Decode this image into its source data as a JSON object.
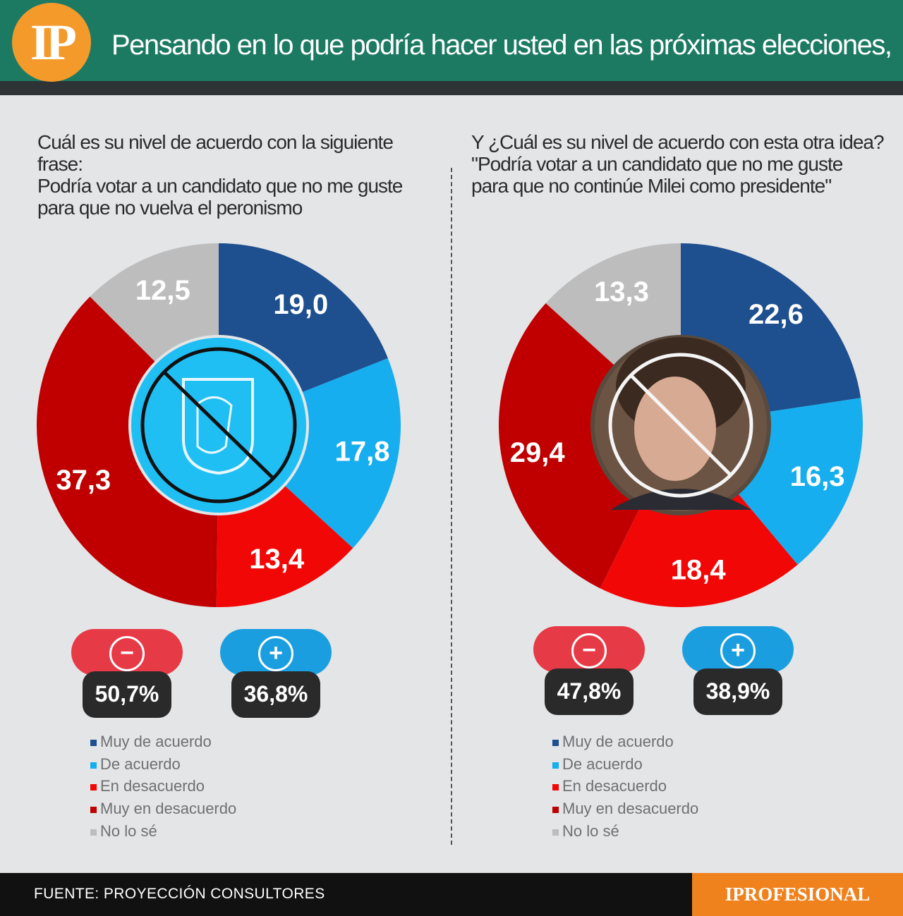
{
  "header": {
    "logo": "IP",
    "title": "Pensando en lo que podría hacer usted en las próximas elecciones,"
  },
  "colors": {
    "muy_de_acuerdo": "#1e4f8e",
    "de_acuerdo": "#16aeee",
    "en_desacuerdo": "#f20707",
    "muy_en_desacuerdo": "#c00000",
    "no_lo_se": "#bdbdbd",
    "minus_pill": "#e63a46",
    "plus_pill": "#1b9ee0"
  },
  "legend": [
    "Muy de acuerdo",
    "De acuerdo",
    "En desacuerdo",
    "Muy en desacuerdo",
    "No lo sé"
  ],
  "chart_data": [
    {
      "type": "pie",
      "question": "Cuál es su nivel de acuerdo con la siguiente frase:\nPodría votar a un candidato que no me guste\npara que no vuelva el peronismo",
      "categories": [
        "Muy de acuerdo",
        "De acuerdo",
        "En desacuerdo",
        "Muy en desacuerdo",
        "No lo sé"
      ],
      "values": [
        19.0,
        17.8,
        13.4,
        37.3,
        12.5
      ],
      "labels": [
        "19,0",
        "17,8",
        "13,4",
        "37,3",
        "12,5"
      ],
      "center_icon": "crossed-peronist-shield-icon",
      "totals": {
        "minus": "50,7%",
        "plus": "36,8%"
      }
    },
    {
      "type": "pie",
      "question": "Y ¿Cuál es su nivel de acuerdo con esta otra idea?\n\"Podría votar a un candidato que no me guste\npara que  no continúe Milei como presidente\"",
      "categories": [
        "Muy de acuerdo",
        "De acuerdo",
        "En desacuerdo",
        "Muy en desacuerdo",
        "No lo sé"
      ],
      "values": [
        22.6,
        16.3,
        18.4,
        29.4,
        13.3
      ],
      "labels": [
        "22,6",
        "16,3",
        "18,4",
        "29,4",
        "13,3"
      ],
      "center_icon": "crossed-portrait-icon",
      "totals": {
        "minus": "47,8%",
        "plus": "38,9%"
      }
    }
  ],
  "footer": {
    "source": "FUENTE: PROYECCIÓN CONSULTORES",
    "brand": "IPROFESIONAL"
  }
}
